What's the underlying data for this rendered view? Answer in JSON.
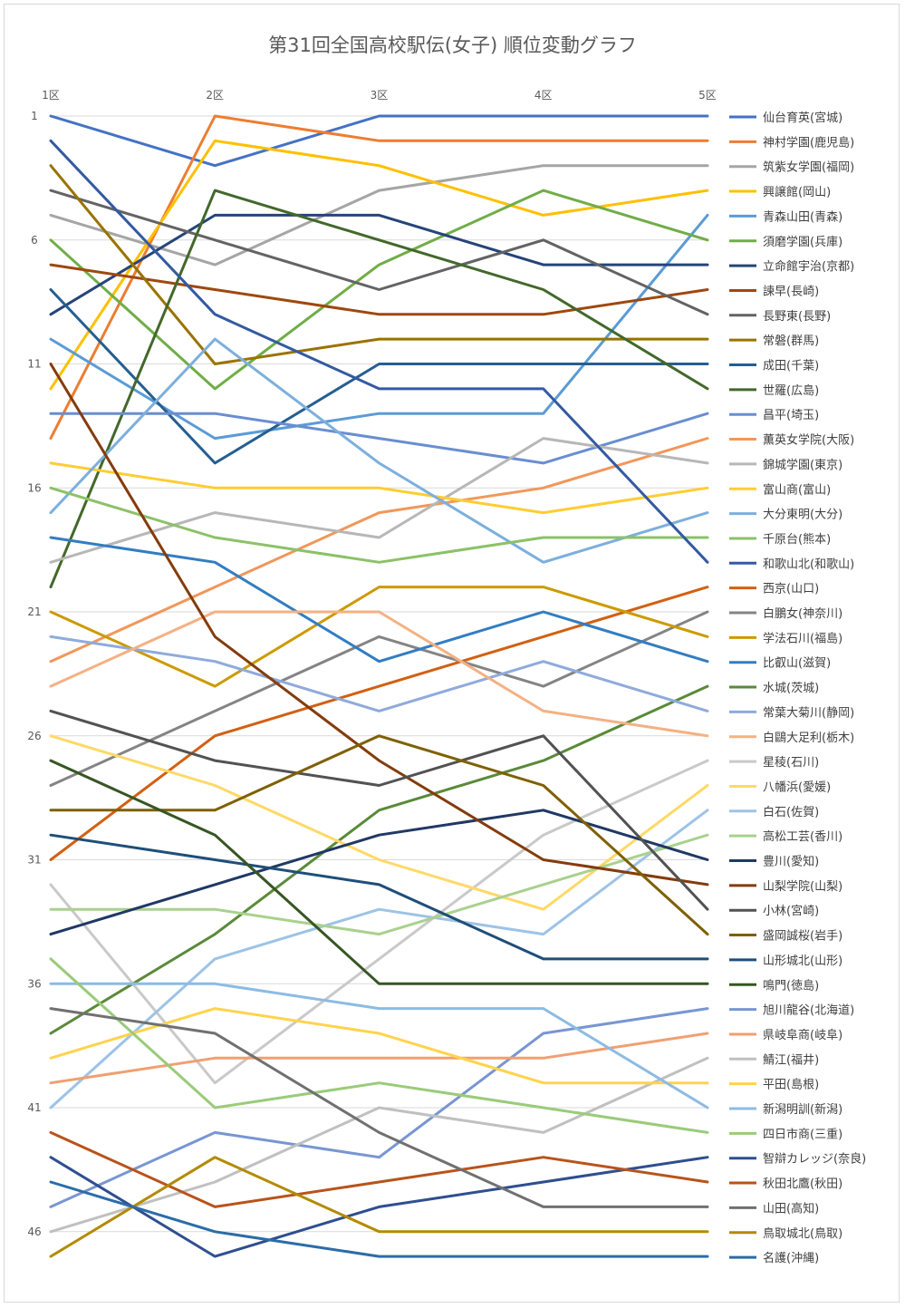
{
  "chart_data": {
    "type": "line",
    "title": "第31回全国高校駅伝(女子) 順位変動グラフ",
    "x": [
      "1区",
      "2区",
      "3区",
      "4区",
      "5区"
    ],
    "y_ticks": [
      "1",
      "6",
      "11",
      "16",
      "21",
      "26",
      "31",
      "36",
      "41",
      "46"
    ],
    "y_tick_values": [
      1,
      6,
      11,
      16,
      21,
      26,
      31,
      36,
      41,
      46
    ],
    "ylim": [
      1,
      47
    ],
    "y_reversed": true,
    "grid": true,
    "legend_position": "right",
    "series": [
      {
        "name": "仙台育英(宮城)",
        "color": "#4472c4",
        "values": [
          1,
          3,
          1,
          1,
          1
        ]
      },
      {
        "name": "神村学園(鹿児島)",
        "color": "#ed7d31",
        "values": [
          14,
          1,
          2,
          2,
          2
        ]
      },
      {
        "name": "筑紫女学園(福岡)",
        "color": "#a5a5a5",
        "values": [
          5,
          7,
          4,
          3,
          3
        ]
      },
      {
        "name": "興譲館(岡山)",
        "color": "#ffc000",
        "values": [
          12,
          2,
          3,
          5,
          4
        ]
      },
      {
        "name": "青森山田(青森)",
        "color": "#5b9bd5",
        "values": [
          10,
          14,
          13,
          13,
          5
        ]
      },
      {
        "name": "須磨学園(兵庫)",
        "color": "#70ad47",
        "values": [
          6,
          12,
          7,
          4,
          6
        ]
      },
      {
        "name": "立命館宇治(京都)",
        "color": "#264478",
        "values": [
          9,
          5,
          5,
          7,
          7
        ]
      },
      {
        "name": "諫早(長崎)",
        "color": "#9e480e",
        "values": [
          7,
          8,
          9,
          9,
          8
        ]
      },
      {
        "name": "長野東(長野)",
        "color": "#636363",
        "values": [
          4,
          6,
          8,
          6,
          9
        ]
      },
      {
        "name": "常磐(群馬)",
        "color": "#997300",
        "values": [
          3,
          11,
          10,
          10,
          10
        ]
      },
      {
        "name": "成田(千葉)",
        "color": "#255e91",
        "values": [
          8,
          15,
          11,
          11,
          11
        ]
      },
      {
        "name": "世羅(広島)",
        "color": "#43682b",
        "values": [
          20,
          4,
          6,
          8,
          12
        ]
      },
      {
        "name": "昌平(埼玉)",
        "color": "#698ed0",
        "values": [
          13,
          13,
          14,
          15,
          13
        ]
      },
      {
        "name": "薫英女学院(大阪)",
        "color": "#f1975a",
        "values": [
          23,
          20,
          17,
          16,
          14
        ]
      },
      {
        "name": "錦城学園(東京)",
        "color": "#b7b7b7",
        "values": [
          19,
          17,
          18,
          14,
          15
        ]
      },
      {
        "name": "富山商(富山)",
        "color": "#ffcd33",
        "values": [
          15,
          16,
          16,
          17,
          16
        ]
      },
      {
        "name": "大分東明(大分)",
        "color": "#7cafdd",
        "values": [
          17,
          10,
          15,
          19,
          17
        ]
      },
      {
        "name": "千原台(熊本)",
        "color": "#8cc168",
        "values": [
          16,
          18,
          19,
          18,
          18
        ]
      },
      {
        "name": "和歌山北(和歌山)",
        "color": "#335aa1",
        "values": [
          2,
          9,
          12,
          12,
          19
        ]
      },
      {
        "name": "西京(山口)",
        "color": "#d26012",
        "values": [
          31,
          26,
          24,
          22,
          20
        ]
      },
      {
        "name": "白鵬女(神奈川)",
        "color": "#848484",
        "values": [
          28,
          25,
          22,
          24,
          21
        ]
      },
      {
        "name": "学法石川(福島)",
        "color": "#cc9a00",
        "values": [
          21,
          24,
          20,
          20,
          22
        ]
      },
      {
        "name": "比叡山(滋賀)",
        "color": "#327dc2",
        "values": [
          18,
          19,
          23,
          21,
          23
        ]
      },
      {
        "name": "水城(茨城)",
        "color": "#5a8a39",
        "values": [
          38,
          34,
          29,
          27,
          24
        ]
      },
      {
        "name": "常葉大菊川(静岡)",
        "color": "#8faadc",
        "values": [
          22,
          23,
          25,
          23,
          25
        ]
      },
      {
        "name": "白鷗大足利(栃木)",
        "color": "#f4b183",
        "values": [
          24,
          21,
          21,
          25,
          26
        ]
      },
      {
        "name": "星稜(石川)",
        "color": "#c9c9c9",
        "values": [
          32,
          40,
          35,
          30,
          27
        ]
      },
      {
        "name": "八幡浜(愛媛)",
        "color": "#ffd966",
        "values": [
          26,
          28,
          31,
          33,
          28
        ]
      },
      {
        "name": "白石(佐賀)",
        "color": "#9dc3e6",
        "values": [
          41,
          35,
          33,
          34,
          29
        ]
      },
      {
        "name": "高松工芸(香川)",
        "color": "#a9d18e",
        "values": [
          33,
          33,
          34,
          32,
          30
        ]
      },
      {
        "name": "豊川(愛知)",
        "color": "#203864",
        "values": [
          34,
          32,
          30,
          29,
          31
        ]
      },
      {
        "name": "山梨学院(山梨)",
        "color": "#843c0c",
        "values": [
          11,
          22,
          27,
          31,
          32
        ]
      },
      {
        "name": "小林(宮崎)",
        "color": "#525252",
        "values": [
          25,
          27,
          28,
          26,
          33
        ]
      },
      {
        "name": "盛岡誠桜(岩手)",
        "color": "#7f6000",
        "values": [
          29,
          29,
          26,
          28,
          34
        ]
      },
      {
        "name": "山形城北(山形)",
        "color": "#1f4e79",
        "values": [
          30,
          31,
          32,
          35,
          35
        ]
      },
      {
        "name": "鳴門(徳島)",
        "color": "#375623",
        "values": [
          27,
          30,
          36,
          36,
          36
        ]
      },
      {
        "name": "旭川龍谷(北海道)",
        "color": "#7896d1",
        "values": [
          45,
          42,
          43,
          38,
          37
        ]
      },
      {
        "name": "県岐阜商(岐阜)",
        "color": "#f0a070",
        "values": [
          40,
          39,
          39,
          39,
          38
        ]
      },
      {
        "name": "鯖江(福井)",
        "color": "#c0c0c0",
        "values": [
          46,
          44,
          41,
          42,
          39
        ]
      },
      {
        "name": "平田(島根)",
        "color": "#ffd34d",
        "values": [
          39,
          37,
          38,
          40,
          40
        ]
      },
      {
        "name": "新潟明訓(新潟)",
        "color": "#8dbbe3",
        "values": [
          36,
          36,
          37,
          37,
          41
        ]
      },
      {
        "name": "四日市商(三重)",
        "color": "#9acb7a",
        "values": [
          35,
          41,
          40,
          41,
          42
        ]
      },
      {
        "name": "智辯カレッジ(奈良)",
        "color": "#2e4f8f",
        "values": [
          43,
          47,
          45,
          44,
          43
        ]
      },
      {
        "name": "秋田北鷹(秋田)",
        "color": "#b9531a",
        "values": [
          42,
          45,
          44,
          43,
          44
        ]
      },
      {
        "name": "山田(高知)",
        "color": "#707070",
        "values": [
          37,
          38,
          42,
          45,
          45
        ]
      },
      {
        "name": "鳥取城北(鳥取)",
        "color": "#b38a00",
        "values": [
          47,
          43,
          46,
          46,
          46
        ]
      },
      {
        "name": "名護(沖縄)",
        "color": "#2b6ca8",
        "values": [
          44,
          46,
          47,
          47,
          47
        ]
      }
    ]
  }
}
